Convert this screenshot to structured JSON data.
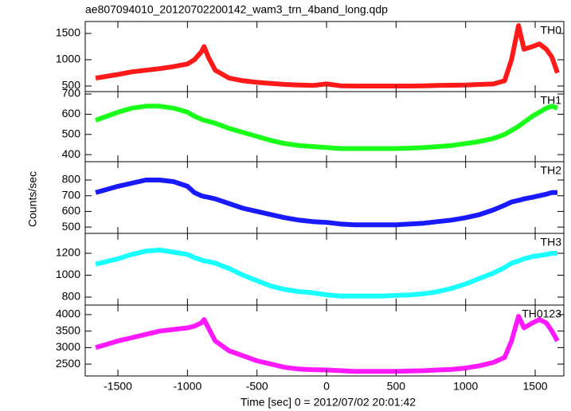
{
  "title": "ae807094010_20120702200142_wam3_trn_4band_long.qdp",
  "ylabel": "Counts/sec",
  "xlabel": "Time [sec] 0 = 2012/07/02 20:01:42",
  "chart_data": [
    {
      "type": "line",
      "x": [
        -1660,
        -1500,
        -1400,
        -1300,
        -1200,
        -1100,
        -1000,
        -950,
        -900,
        -880,
        -850,
        -800,
        -700,
        -600,
        -500,
        -400,
        -300,
        -200,
        -100,
        0,
        100,
        200,
        300,
        400,
        500,
        600,
        700,
        800,
        900,
        1000,
        1100,
        1200,
        1280,
        1330,
        1380,
        1420,
        1480,
        1530,
        1580,
        1620,
        1660
      ],
      "series": [
        {
          "name": "TH0",
          "color": "#ff0000",
          "values": [
            650,
            720,
            770,
            800,
            830,
            870,
            920,
            1000,
            1150,
            1250,
            1050,
            800,
            650,
            600,
            570,
            550,
            530,
            520,
            510,
            540,
            505,
            500,
            500,
            500,
            500,
            500,
            505,
            510,
            515,
            520,
            530,
            540,
            600,
            1000,
            1650,
            1200,
            1250,
            1300,
            1200,
            1050,
            750
          ]
        }
      ],
      "xlim": [
        -1735,
        1706
      ],
      "xticks": [
        -1500,
        -1000,
        -500,
        0,
        500,
        1000,
        1500
      ],
      "ylim": [
        394,
        1727
      ],
      "yticks": [
        500,
        1000,
        1500
      ]
    },
    {
      "type": "line",
      "x": [
        -1660,
        -1500,
        -1400,
        -1300,
        -1200,
        -1100,
        -1000,
        -950,
        -900,
        -880,
        -850,
        -800,
        -700,
        -600,
        -500,
        -400,
        -300,
        -200,
        -100,
        0,
        100,
        200,
        300,
        400,
        500,
        600,
        700,
        800,
        900,
        1000,
        1100,
        1200,
        1280,
        1330,
        1380,
        1420,
        1480,
        1530,
        1580,
        1620,
        1660
      ],
      "series": [
        {
          "name": "TH1",
          "color": "#00ff00",
          "values": [
            570,
            610,
            630,
            640,
            640,
            630,
            610,
            590,
            575,
            570,
            565,
            555,
            530,
            510,
            490,
            470,
            455,
            445,
            440,
            435,
            430,
            430,
            430,
            430,
            430,
            432,
            435,
            440,
            445,
            455,
            465,
            480,
            500,
            520,
            540,
            560,
            590,
            610,
            630,
            640,
            630
          ]
        }
      ],
      "xlim": [
        -1735,
        1706
      ],
      "xticks": [
        -1500,
        -1000,
        -500,
        0,
        500,
        1000,
        1500
      ],
      "ylim": [
        365,
        712
      ],
      "yticks": [
        400,
        500,
        600,
        700
      ]
    },
    {
      "type": "line",
      "x": [
        -1660,
        -1500,
        -1400,
        -1300,
        -1200,
        -1100,
        -1000,
        -950,
        -900,
        -880,
        -850,
        -800,
        -700,
        -600,
        -500,
        -400,
        -300,
        -200,
        -100,
        0,
        100,
        200,
        300,
        400,
        500,
        600,
        700,
        800,
        900,
        1000,
        1100,
        1200,
        1280,
        1330,
        1380,
        1420,
        1480,
        1530,
        1580,
        1620,
        1660
      ],
      "series": [
        {
          "name": "TH2",
          "color": "#0000ff",
          "values": [
            720,
            760,
            780,
            800,
            800,
            790,
            760,
            720,
            700,
            695,
            690,
            680,
            650,
            620,
            600,
            580,
            560,
            545,
            535,
            530,
            520,
            515,
            515,
            515,
            515,
            520,
            525,
            535,
            545,
            560,
            580,
            610,
            640,
            660,
            670,
            680,
            690,
            700,
            710,
            720,
            720
          ]
        }
      ],
      "xlim": [
        -1735,
        1706
      ],
      "xticks": [
        -1500,
        -1000,
        -500,
        0,
        500,
        1000,
        1500
      ],
      "ylim": [
        460,
        917
      ],
      "yticks": [
        500,
        600,
        700,
        800
      ]
    },
    {
      "type": "line",
      "x": [
        -1660,
        -1500,
        -1400,
        -1300,
        -1200,
        -1100,
        -1000,
        -950,
        -900,
        -880,
        -850,
        -800,
        -700,
        -600,
        -500,
        -400,
        -300,
        -200,
        -100,
        0,
        100,
        200,
        300,
        400,
        500,
        600,
        700,
        800,
        900,
        1000,
        1100,
        1200,
        1280,
        1330,
        1380,
        1420,
        1480,
        1530,
        1580,
        1620,
        1660
      ],
      "series": [
        {
          "name": "TH3",
          "color": "#00ffff",
          "values": [
            1100,
            1150,
            1190,
            1220,
            1230,
            1210,
            1190,
            1160,
            1140,
            1130,
            1125,
            1110,
            1060,
            1000,
            950,
            900,
            870,
            850,
            840,
            820,
            810,
            810,
            810,
            810,
            815,
            820,
            830,
            850,
            880,
            920,
            970,
            1020,
            1070,
            1110,
            1130,
            1150,
            1170,
            1180,
            1190,
            1200,
            1200
          ]
        }
      ],
      "xlim": [
        -1735,
        1706
      ],
      "xticks": [
        -1500,
        -1000,
        -500,
        0,
        500,
        1000,
        1500
      ],
      "ylim": [
        727,
        1382
      ],
      "yticks": [
        800,
        1000,
        1200
      ]
    },
    {
      "type": "line",
      "x": [
        -1660,
        -1500,
        -1400,
        -1300,
        -1200,
        -1100,
        -1000,
        -950,
        -900,
        -880,
        -850,
        -800,
        -700,
        -600,
        -500,
        -400,
        -300,
        -200,
        -100,
        0,
        100,
        200,
        300,
        400,
        500,
        600,
        700,
        800,
        900,
        1000,
        1100,
        1200,
        1280,
        1330,
        1380,
        1420,
        1480,
        1530,
        1580,
        1620,
        1660
      ],
      "series": [
        {
          "name": "TH0123",
          "color": "#ff00ff",
          "values": [
            3000,
            3200,
            3300,
            3400,
            3500,
            3550,
            3600,
            3650,
            3750,
            3850,
            3600,
            3200,
            2900,
            2750,
            2600,
            2500,
            2400,
            2350,
            2330,
            2320,
            2300,
            2280,
            2280,
            2280,
            2280,
            2290,
            2300,
            2320,
            2340,
            2380,
            2450,
            2550,
            2700,
            3200,
            3950,
            3600,
            3750,
            3850,
            3750,
            3500,
            3200
          ]
        }
      ],
      "xlim": [
        -1735,
        1706
      ],
      "xticks": [
        -1500,
        -1000,
        -500,
        0,
        500,
        1000,
        1500
      ],
      "ylim": [
        2140,
        4290
      ],
      "yticks": [
        2500,
        3000,
        3500,
        4000
      ]
    }
  ]
}
